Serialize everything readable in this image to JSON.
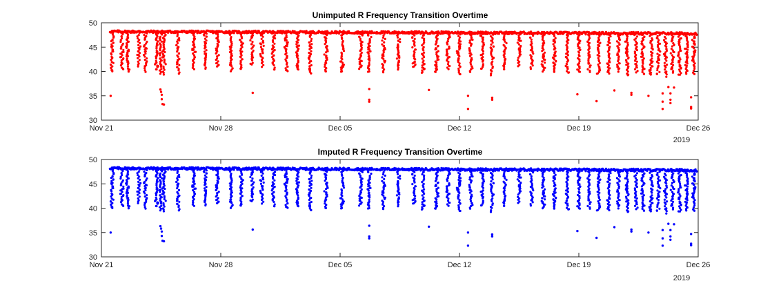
{
  "chart_data": [
    {
      "type": "scatter",
      "title": "Unimputed R Frequency Transition Overtime",
      "xlabel": "",
      "ylabel": "",
      "x_axis": "date",
      "xlim": [
        "2018-11-21",
        "2018-12-26"
      ],
      "ylim": [
        30,
        50
      ],
      "x_ticks": [
        "2018-11-21",
        "2018-11-28",
        "2018-12-05",
        "2018-12-12",
        "2018-12-19",
        "2018-12-26"
      ],
      "x_tick_labels": [
        "Nov 21",
        "Nov 28",
        "Dec 05",
        "Dec 12",
        "Dec 19",
        "Dec 26"
      ],
      "x_year_label": "2019",
      "y_ticks": [
        30,
        35,
        40,
        45,
        50
      ],
      "y_tick_labels": [
        "30",
        "35",
        "40",
        "45",
        "50"
      ],
      "grid": false,
      "legend": "none",
      "series": [
        {
          "color": "#ff0000",
          "baseline": {
            "start": "2018-11-21 12:00",
            "end": "2018-12-25 22:00",
            "start_value": 48.2,
            "end_value": 47.8
          },
          "dips": [
            [
              "2018-11-21 15:00",
              40.0
            ],
            [
              "2018-11-22 05:00",
              40.5
            ],
            [
              "2018-11-22 13:00",
              40.0
            ],
            [
              "2018-11-23 05:00",
              41.0
            ],
            [
              "2018-11-23 14:00",
              40.0
            ],
            [
              "2018-11-24 06:00",
              40.5
            ],
            [
              "2018-11-24 12:00",
              39.5
            ],
            [
              "2018-11-24 16:00",
              39.3
            ],
            [
              "2018-11-25 12:00",
              39.5
            ],
            [
              "2018-11-26 10:00",
              40.5
            ],
            [
              "2018-11-27 02:00",
              40.5
            ],
            [
              "2018-11-27 19:00",
              41.0
            ],
            [
              "2018-11-28 14:00",
              40.0
            ],
            [
              "2018-11-29 05:00",
              40.5
            ],
            [
              "2018-11-29 20:00",
              41.5
            ],
            [
              "2018-11-30 10:00",
              41.0
            ],
            [
              "2018-12-01 02:00",
              40.5
            ],
            [
              "2018-12-01 20:00",
              40.0
            ],
            [
              "2018-12-02 12:00",
              40.5
            ],
            [
              "2018-12-03 06:00",
              39.6
            ],
            [
              "2018-12-04 04:00",
              40.0
            ],
            [
              "2018-12-05 03:00",
              40.0
            ],
            [
              "2018-12-06 05:00",
              40.5
            ],
            [
              "2018-12-06 17:00",
              40.0
            ],
            [
              "2018-12-07 13:00",
              39.8
            ],
            [
              "2018-12-08 10:00",
              40.5
            ],
            [
              "2018-12-09 08:00",
              41.0
            ],
            [
              "2018-12-09 21:00",
              39.8
            ],
            [
              "2018-12-10 16:00",
              40.0
            ],
            [
              "2018-12-11 08:00",
              40.5
            ],
            [
              "2018-12-11 23:00",
              39.5
            ],
            [
              "2018-12-12 16:00",
              40.0
            ],
            [
              "2018-12-13 08:00",
              40.5
            ],
            [
              "2018-12-13 22:00",
              39.3
            ],
            [
              "2018-12-14 16:00",
              40.5
            ],
            [
              "2018-12-15 12:00",
              41.0
            ],
            [
              "2018-12-16 06:00",
              40.5
            ],
            [
              "2018-12-16 22:00",
              40.0
            ],
            [
              "2018-12-17 14:00",
              40.0
            ],
            [
              "2018-12-18 08:00",
              39.8
            ],
            [
              "2018-12-19 00:00",
              40.0
            ],
            [
              "2018-12-19 14:00",
              39.8
            ],
            [
              "2018-12-20 04:00",
              39.6
            ],
            [
              "2018-12-20 18:00",
              39.5
            ],
            [
              "2018-12-21 08:00",
              40.0
            ],
            [
              "2018-12-21 20:00",
              39.3
            ],
            [
              "2018-12-22 08:00",
              39.8
            ],
            [
              "2018-12-22 18:00",
              39.5
            ],
            [
              "2018-12-23 06:00",
              39.3
            ],
            [
              "2018-12-23 16:00",
              39.5
            ],
            [
              "2018-12-24 02:00",
              39.0
            ],
            [
              "2018-12-24 12:00",
              39.8
            ],
            [
              "2018-12-24 22:00",
              39.3
            ],
            [
              "2018-12-25 08:00",
              39.5
            ],
            [
              "2018-12-25 18:00",
              39.5
            ]
          ],
          "outliers": [
            [
              "2018-11-21 13:00",
              35.0
            ],
            [
              "2018-11-24 11:00",
              36.3
            ],
            [
              "2018-11-24 12:00",
              35.8
            ],
            [
              "2018-11-24 13:00",
              35.2
            ],
            [
              "2018-11-24 13:00",
              34.3
            ],
            [
              "2018-11-24 14:00",
              33.3
            ],
            [
              "2018-11-24 16:00",
              33.2
            ],
            [
              "2018-11-29 21:00",
              35.6
            ],
            [
              "2018-12-06 17:00",
              36.4
            ],
            [
              "2018-12-06 17:00",
              34.2
            ],
            [
              "2018-12-06 17:00",
              33.8
            ],
            [
              "2018-12-10 05:00",
              36.2
            ],
            [
              "2018-12-12 12:00",
              35.0
            ],
            [
              "2018-12-12 12:00",
              32.3
            ],
            [
              "2018-12-13 22:00",
              34.6
            ],
            [
              "2018-12-13 22:00",
              34.2
            ],
            [
              "2018-12-18 22:00",
              35.3
            ],
            [
              "2018-12-20 01:00",
              33.9
            ],
            [
              "2018-12-21 02:00",
              36.1
            ],
            [
              "2018-12-22 02:00",
              35.6
            ],
            [
              "2018-12-22 02:00",
              35.2
            ],
            [
              "2018-12-23 02:00",
              35.0
            ],
            [
              "2018-12-23 22:00",
              35.5
            ],
            [
              "2018-12-23 22:00",
              33.8
            ],
            [
              "2018-12-23 22:00",
              32.3
            ],
            [
              "2018-12-24 06:00",
              36.8
            ],
            [
              "2018-12-24 09:00",
              35.5
            ],
            [
              "2018-12-24 09:00",
              34.2
            ],
            [
              "2018-12-24 09:00",
              33.5
            ],
            [
              "2018-12-24 14:00",
              36.7
            ],
            [
              "2018-12-25 14:00",
              34.7
            ],
            [
              "2018-12-25 14:00",
              32.7
            ],
            [
              "2018-12-25 14:00",
              32.4
            ]
          ]
        }
      ]
    },
    {
      "type": "scatter",
      "title": "Imputed R Frequency Transition Overtime",
      "xlabel": "",
      "ylabel": "",
      "x_axis": "date",
      "xlim": [
        "2018-11-21",
        "2018-12-26"
      ],
      "ylim": [
        30,
        50
      ],
      "x_ticks": [
        "2018-11-21",
        "2018-11-28",
        "2018-12-05",
        "2018-12-12",
        "2018-12-19",
        "2018-12-26"
      ],
      "x_tick_labels": [
        "Nov 21",
        "Nov 28",
        "Dec 05",
        "Dec 12",
        "Dec 19",
        "Dec 26"
      ],
      "x_year_label": "2019",
      "y_ticks": [
        30,
        35,
        40,
        45,
        50
      ],
      "y_tick_labels": [
        "30",
        "35",
        "40",
        "45",
        "50"
      ],
      "grid": false,
      "legend": "none",
      "series": [
        {
          "color": "#0000ff",
          "baseline": {
            "start": "2018-11-21 12:00",
            "end": "2018-12-25 22:00",
            "start_value": 48.2,
            "end_value": 47.8
          },
          "dips": [
            [
              "2018-11-21 15:00",
              40.0
            ],
            [
              "2018-11-22 05:00",
              40.5
            ],
            [
              "2018-11-22 13:00",
              40.0
            ],
            [
              "2018-11-23 05:00",
              41.0
            ],
            [
              "2018-11-23 14:00",
              40.0
            ],
            [
              "2018-11-24 06:00",
              40.5
            ],
            [
              "2018-11-24 12:00",
              39.5
            ],
            [
              "2018-11-24 16:00",
              39.3
            ],
            [
              "2018-11-25 12:00",
              39.5
            ],
            [
              "2018-11-26 10:00",
              40.5
            ],
            [
              "2018-11-27 02:00",
              40.5
            ],
            [
              "2018-11-27 19:00",
              41.0
            ],
            [
              "2018-11-28 14:00",
              40.0
            ],
            [
              "2018-11-29 05:00",
              40.5
            ],
            [
              "2018-11-29 20:00",
              41.5
            ],
            [
              "2018-11-30 10:00",
              41.0
            ],
            [
              "2018-12-01 02:00",
              40.5
            ],
            [
              "2018-12-01 20:00",
              40.0
            ],
            [
              "2018-12-02 12:00",
              40.5
            ],
            [
              "2018-12-03 06:00",
              39.6
            ],
            [
              "2018-12-04 04:00",
              40.0
            ],
            [
              "2018-12-05 03:00",
              40.0
            ],
            [
              "2018-12-06 05:00",
              40.5
            ],
            [
              "2018-12-06 17:00",
              40.0
            ],
            [
              "2018-12-07 13:00",
              39.8
            ],
            [
              "2018-12-08 10:00",
              40.5
            ],
            [
              "2018-12-09 08:00",
              41.0
            ],
            [
              "2018-12-09 21:00",
              39.8
            ],
            [
              "2018-12-10 16:00",
              40.0
            ],
            [
              "2018-12-11 08:00",
              40.5
            ],
            [
              "2018-12-11 23:00",
              39.5
            ],
            [
              "2018-12-12 16:00",
              40.0
            ],
            [
              "2018-12-13 08:00",
              40.5
            ],
            [
              "2018-12-13 22:00",
              39.3
            ],
            [
              "2018-12-14 16:00",
              40.5
            ],
            [
              "2018-12-15 12:00",
              41.0
            ],
            [
              "2018-12-16 06:00",
              40.5
            ],
            [
              "2018-12-16 22:00",
              40.0
            ],
            [
              "2018-12-17 14:00",
              40.0
            ],
            [
              "2018-12-18 08:00",
              39.8
            ],
            [
              "2018-12-19 00:00",
              40.0
            ],
            [
              "2018-12-19 14:00",
              39.8
            ],
            [
              "2018-12-20 04:00",
              39.6
            ],
            [
              "2018-12-20 18:00",
              39.5
            ],
            [
              "2018-12-21 08:00",
              40.0
            ],
            [
              "2018-12-21 20:00",
              39.3
            ],
            [
              "2018-12-22 08:00",
              39.8
            ],
            [
              "2018-12-22 18:00",
              39.5
            ],
            [
              "2018-12-23 06:00",
              39.3
            ],
            [
              "2018-12-23 16:00",
              39.5
            ],
            [
              "2018-12-24 02:00",
              39.0
            ],
            [
              "2018-12-24 12:00",
              39.8
            ],
            [
              "2018-12-24 22:00",
              39.3
            ],
            [
              "2018-12-25 08:00",
              39.5
            ],
            [
              "2018-12-25 18:00",
              39.5
            ]
          ],
          "outliers": [
            [
              "2018-11-21 13:00",
              35.0
            ],
            [
              "2018-11-24 11:00",
              36.3
            ],
            [
              "2018-11-24 12:00",
              35.8
            ],
            [
              "2018-11-24 13:00",
              35.2
            ],
            [
              "2018-11-24 13:00",
              34.3
            ],
            [
              "2018-11-24 14:00",
              33.3
            ],
            [
              "2018-11-24 16:00",
              33.2
            ],
            [
              "2018-11-29 21:00",
              35.6
            ],
            [
              "2018-12-06 17:00",
              36.4
            ],
            [
              "2018-12-06 17:00",
              34.2
            ],
            [
              "2018-12-06 17:00",
              33.8
            ],
            [
              "2018-12-10 05:00",
              36.2
            ],
            [
              "2018-12-12 12:00",
              35.0
            ],
            [
              "2018-12-12 12:00",
              32.3
            ],
            [
              "2018-12-13 22:00",
              34.6
            ],
            [
              "2018-12-13 22:00",
              34.2
            ],
            [
              "2018-12-18 22:00",
              35.3
            ],
            [
              "2018-12-20 01:00",
              33.9
            ],
            [
              "2018-12-21 02:00",
              36.1
            ],
            [
              "2018-12-22 02:00",
              35.6
            ],
            [
              "2018-12-22 02:00",
              35.2
            ],
            [
              "2018-12-23 02:00",
              35.0
            ],
            [
              "2018-12-23 22:00",
              35.5
            ],
            [
              "2018-12-23 22:00",
              33.8
            ],
            [
              "2018-12-23 22:00",
              32.3
            ],
            [
              "2018-12-24 06:00",
              36.8
            ],
            [
              "2018-12-24 09:00",
              35.5
            ],
            [
              "2018-12-24 09:00",
              34.2
            ],
            [
              "2018-12-24 09:00",
              33.5
            ],
            [
              "2018-12-24 14:00",
              36.7
            ],
            [
              "2018-12-25 14:00",
              34.7
            ],
            [
              "2018-12-25 14:00",
              32.7
            ],
            [
              "2018-12-25 14:00",
              32.4
            ]
          ]
        }
      ]
    }
  ]
}
